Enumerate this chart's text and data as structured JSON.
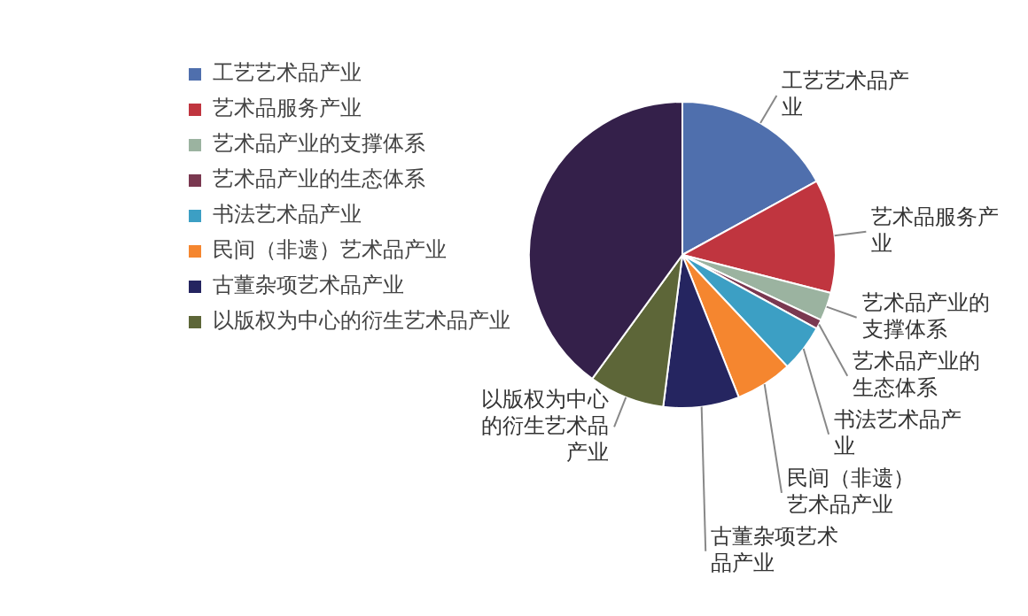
{
  "chart_data": {
    "type": "pie",
    "categories": [
      "工艺艺术品产业",
      "艺术品服务产业",
      "艺术品产业的支撑体系",
      "艺术品产业的生态体系",
      "书法艺术品产业",
      "民间（非遗）艺术品产业",
      "古董杂项艺术品产业",
      "以版权为中心的衍生艺术品产业",
      null
    ],
    "values": [
      17,
      12,
      3,
      1,
      5,
      6,
      8,
      8,
      40
    ],
    "colors": [
      "#4f6fad",
      "#c0353f",
      "#9bb3a0",
      "#7a3850",
      "#3c9fc4",
      "#f5862f",
      "#252560",
      "#5d6638",
      "#34204a"
    ],
    "legend": "left"
  }
}
